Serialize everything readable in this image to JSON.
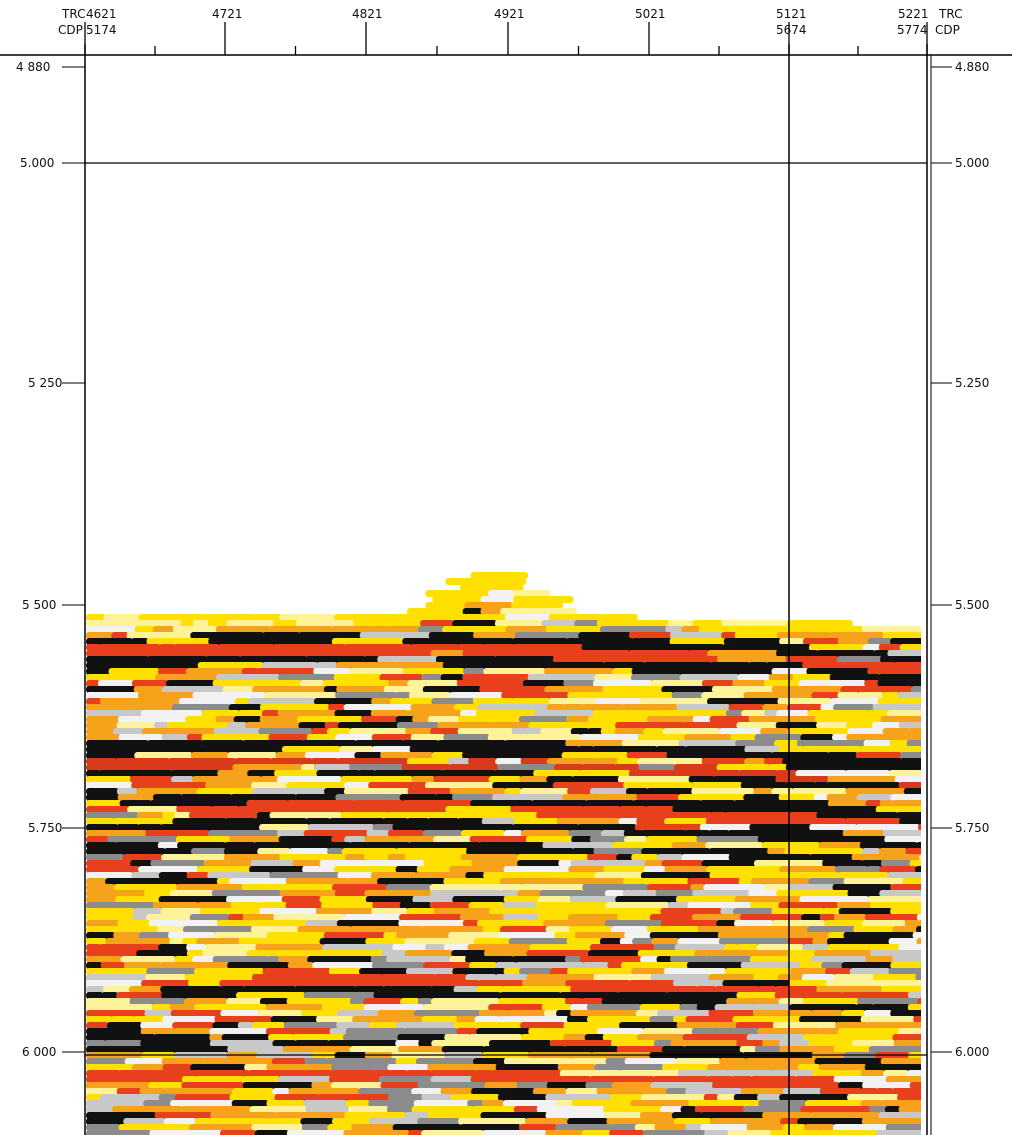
{
  "header": {
    "trc_left": "TRC",
    "cdp_left": "CDP",
    "trc_right": "TRC",
    "cdp_right": "CDP",
    "traces": [
      "4621",
      "4721",
      "4821",
      "4921",
      "5021",
      "5121",
      "5221"
    ],
    "cdps": [
      "5174",
      "5674",
      "5774"
    ]
  },
  "time_axis": {
    "left": [
      "4 880",
      "5.000",
      "5 250",
      "5 500",
      "5.750",
      "6 000"
    ],
    "right": [
      "4.880",
      "5.000",
      "5.250",
      "5.500",
      "5.750",
      "6.000"
    ]
  }
}
